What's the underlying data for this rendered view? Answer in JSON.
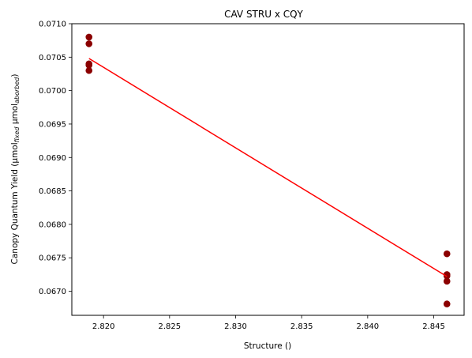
{
  "chart_data": {
    "type": "scatter",
    "title": "CAV STRU x CQY",
    "xlabel": "Structure ()",
    "ylabel": {
      "prefix": "Canopy Quantum Yield (µmol",
      "sub1": "fixed",
      "mid": " µmol",
      "sub2": "aborbed",
      "suffix": ")"
    },
    "xlim": [
      2.8176,
      2.8473
    ],
    "ylim": [
      0.06664,
      0.071
    ],
    "xticks": [
      2.82,
      2.825,
      2.83,
      2.835,
      2.84,
      2.845
    ],
    "xtick_labels": [
      "2.820",
      "2.825",
      "2.830",
      "2.835",
      "2.840",
      "2.845"
    ],
    "yticks": [
      0.067,
      0.0675,
      0.068,
      0.0685,
      0.069,
      0.0695,
      0.07,
      0.0705,
      0.071
    ],
    "ytick_labels": [
      "0.0670",
      "0.0675",
      "0.0680",
      "0.0685",
      "0.0690",
      "0.0695",
      "0.0700",
      "0.0705",
      "0.0710"
    ],
    "grid": false,
    "series": [
      {
        "type": "scatter",
        "color": "#8b0000",
        "points": [
          [
            2.8189,
            0.0708
          ],
          [
            2.8189,
            0.0707
          ],
          [
            2.8189,
            0.0704
          ],
          [
            2.8189,
            0.07038
          ],
          [
            2.8189,
            0.0703
          ],
          [
            2.846,
            0.06756
          ],
          [
            2.846,
            0.06725
          ],
          [
            2.846,
            0.06723
          ],
          [
            2.846,
            0.06715
          ],
          [
            2.846,
            0.06681
          ]
        ]
      },
      {
        "type": "line",
        "color": "#ff0000",
        "points": [
          [
            2.8189,
            0.07048
          ],
          [
            2.846,
            0.06722
          ]
        ]
      }
    ]
  }
}
